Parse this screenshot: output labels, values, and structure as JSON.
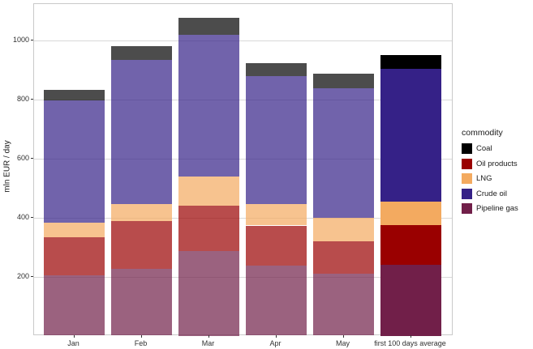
{
  "chart_data": {
    "type": "bar",
    "stacked": true,
    "title": "",
    "xlabel": "",
    "ylabel": "mln EUR / day",
    "categories": [
      "Jan",
      "Feb",
      "Mar",
      "Apr",
      "May",
      "first 100 days average"
    ],
    "series": [
      {
        "name": "Pipeline gas",
        "color": "#711F49",
        "values": [
          205,
          227,
          288,
          238,
          209,
          240
        ]
      },
      {
        "name": "Oil products",
        "color": "#9A0000",
        "values": [
          128,
          160,
          153,
          135,
          110,
          135
        ]
      },
      {
        "name": "LNG",
        "color": "#F3AA60",
        "values": [
          50,
          58,
          97,
          72,
          79,
          80
        ]
      },
      {
        "name": "Crude oil",
        "color": "#352187",
        "values": [
          415,
          490,
          482,
          435,
          441,
          450
        ]
      },
      {
        "name": "Coal",
        "color": "#000000",
        "values": [
          36,
          45,
          56,
          44,
          48,
          46
        ]
      }
    ],
    "totals": [
      834,
      980,
      1076,
      924,
      887,
      951
    ],
    "highlight_category": "first 100 days average",
    "month_bar_alpha": 0.7,
    "ylim": [
      0,
      1126
    ],
    "yticks": [
      200,
      400,
      600,
      800,
      1000
    ],
    "grid": "major-horizontal",
    "legend": {
      "title": "commodity",
      "position": "right",
      "entries": [
        {
          "label": "Coal",
          "color": "#000000"
        },
        {
          "label": "Oil products",
          "color": "#9A0000"
        },
        {
          "label": "LNG",
          "color": "#F3AA60"
        },
        {
          "label": "Crude oil",
          "color": "#352187"
        },
        {
          "label": "Pipeline gas",
          "color": "#711F49"
        }
      ]
    }
  },
  "colors": {
    "background": "#ffffff",
    "panel_border": "#c9c9c9",
    "gridline": "#d9d9d9",
    "axis_text": "#303030",
    "tick_mark": "#333333"
  }
}
